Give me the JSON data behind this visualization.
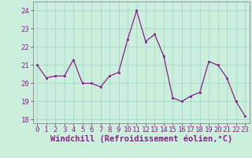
{
  "x": [
    0,
    1,
    2,
    3,
    4,
    5,
    6,
    7,
    8,
    9,
    10,
    11,
    12,
    13,
    14,
    15,
    16,
    17,
    18,
    19,
    20,
    21,
    22,
    23
  ],
  "y": [
    21.0,
    20.3,
    20.4,
    20.4,
    21.3,
    20.0,
    20.0,
    19.8,
    20.4,
    20.6,
    22.4,
    24.0,
    22.3,
    22.7,
    21.5,
    19.2,
    19.0,
    19.3,
    19.5,
    21.2,
    21.0,
    20.3,
    19.0,
    18.2
  ],
  "line_color": "#882288",
  "marker_color": "#882288",
  "bg_color": "#cceedd",
  "grid_color": "#aaddcc",
  "xlabel": "Windchill (Refroidissement éolien,°C)",
  "xlabel_color": "#882288",
  "ylim": [
    17.8,
    24.5
  ],
  "xlim": [
    -0.5,
    23.5
  ],
  "yticks": [
    18,
    19,
    20,
    21,
    22,
    23,
    24
  ],
  "xticks": [
    0,
    1,
    2,
    3,
    4,
    5,
    6,
    7,
    8,
    9,
    10,
    11,
    12,
    13,
    14,
    15,
    16,
    17,
    18,
    19,
    20,
    21,
    22,
    23
  ],
  "tick_label_size": 6.5,
  "xlabel_size": 7.5
}
